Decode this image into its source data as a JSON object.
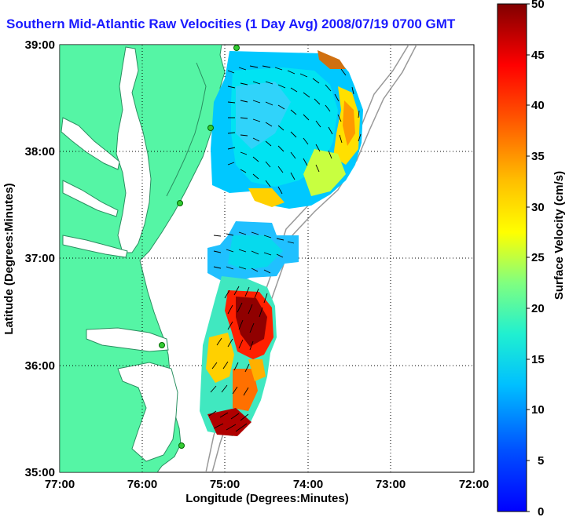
{
  "title": "Southern Mid-Atlantic Raw Velocities (1 Day Avg) 2008/07/19 0700 GMT",
  "map": {
    "xlabel": "Longitude (Degrees:Minutes)",
    "ylabel": "Latitude (Degrees:Minutes)",
    "x_ticks": [
      "77:00",
      "76:00",
      "75:00",
      "74:00",
      "73:00",
      "72:00"
    ],
    "y_ticks": [
      "39:00",
      "38:00",
      "37:00",
      "36:00",
      "35:00"
    ],
    "lon_range": [
      -77,
      -72
    ],
    "lat_range": [
      35,
      39
    ],
    "land_color": "#55f5a5",
    "grid": true
  },
  "colorbar": {
    "label": "Surface Velocity (cm/s)",
    "ticks": [
      "50",
      "45",
      "40",
      "35",
      "30",
      "25",
      "20",
      "15",
      "10",
      "5",
      "0"
    ],
    "range": [
      0,
      50
    ]
  }
}
